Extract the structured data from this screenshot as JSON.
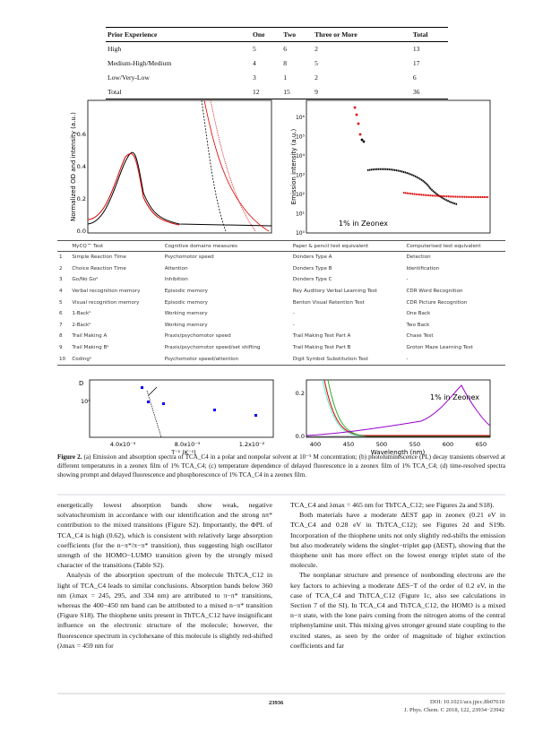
{
  "table1": {
    "headers": [
      "Prior Experience",
      "One",
      "Two",
      "Three or More",
      "Total"
    ],
    "rows": [
      [
        "High",
        "5",
        "6",
        "2",
        "13"
      ],
      [
        "Medium-High/Medium",
        "4",
        "8",
        "5",
        "17"
      ],
      [
        "Low/Very-Low",
        "3",
        "1",
        "2",
        "6"
      ],
      [
        "Total",
        "12",
        "15",
        "9",
        "36"
      ]
    ]
  },
  "figure_top": {
    "left": {
      "y_label": "Normalized OD and intensity (a.u.)",
      "yticks": [
        "0.0",
        "0.2",
        "0.4",
        "0.6"
      ]
    },
    "right": {
      "y_label": "Emission intensity (a.u.)",
      "yticks": [
        "10⁰",
        "10¹",
        "10²",
        "10³",
        "10⁴",
        "10⁵",
        "10⁶"
      ],
      "annotation": "1% in Zeonex"
    }
  },
  "table2": {
    "headers": [
      "MyCQ™ Test",
      "Cognitive domains measures",
      "Paper & pencil test equivalent",
      "Computerised test equivalent"
    ],
    "rows": [
      [
        "1",
        "Simple Reaction Time",
        "Psychomotor speed",
        "Donders Type A",
        "Detection"
      ],
      [
        "2",
        "Choice Reaction Time",
        "Attention",
        "Donders Type B",
        "Identification"
      ],
      [
        "3",
        "Go/No Goᵃ",
        "Inhibition",
        "Donders Type C",
        "-"
      ],
      [
        "4",
        "Verbal recognition memory",
        "Episodic memory",
        "Rey Auditory Verbal Learning Test",
        "CDR Word Recognition"
      ],
      [
        "5",
        "Visual recognition memory",
        "Episodic memory",
        "Benton Visual Retention Test",
        "CDR Picture Recognition"
      ],
      [
        "6",
        "1-Backᵇ",
        "Working memory",
        "-",
        "One Back"
      ],
      [
        "7",
        "2-Backᵇ",
        "Working memory",
        "-",
        "Two Back"
      ],
      [
        "8",
        "Trail Making A",
        "Praxis/psychomotor speed",
        "Trail Making Test Part A",
        "Chase Test"
      ],
      [
        "9",
        "Trail Making Bᵃ",
        "Praxis/psychomotor speed/set shifting",
        "Trail Making Test Part B",
        "Groton Maze Learning Test"
      ],
      [
        "10",
        "Codingᵃ",
        "Psychomotor speed/attention",
        "Digit Symbol Substitution Test",
        "-"
      ]
    ]
  },
  "figure_bottom": {
    "left": {
      "y_label": "D",
      "ytick": "10⁴",
      "xticks": [
        "4.0x10⁻³",
        "8.0x10⁻³",
        "1.2x10⁻²"
      ],
      "x_label": "T⁻¹ (K⁻¹)"
    },
    "right": {
      "yticks": [
        "0.0",
        "0.2"
      ],
      "xticks": [
        "400",
        "450",
        "500",
        "550",
        "600",
        "650"
      ],
      "x_label": "Wavelength (nm)",
      "annotation": "1% in Zeonex"
    }
  },
  "caption": {
    "label": "Figure 2.",
    "text": " (a) Emission and absorption spectra of TCA_C4 in a polar and nonpolar solvent at 10⁻⁵ M concentration; (b) photoluminescence (PL) decay transients observed at different temperatures in a zeonex film of 1% TCA_C4; (c) temperature dependence of delayed fluorescence in a zeonex film of 1% TCA_C4; (d) time-resolved spectra showing prompt and delayed fluorescence and phosphorescence of 1% TCA_C4 in a zeonex film."
  },
  "body": {
    "left": [
      "energetically lowest absorption bands show weak, negative solvatochromism in accordance with our identification and the strong nπ* contribution to the mixed transitions (Figure S2). Importantly, the ΦPL of TCA_C4 is high (0.62), which is consistent with relatively large absorption coefficients (for the n−π*/π−π* transition), thus suggesting high oscillator strength of the HOMO−LUMO transition given by the strongly mixed character of the transitions (Table S2).",
      "Analysis of the absorption spectrum of the molecule ThTCA_C12 in light of TCA_C4 leads to similar conclusions. Absorption bands below 360 nm (λmax = 245, 295, and 334 nm) are attributed to π−π* transitions, whereas the 400−450 nm band can be attributed to a mixed n−π* transition (Figure S18). The thiophene units present in ThTCA_C12 have insignificant influence on the electronic structure of the molecule; however, the fluorescence spectrum in cyclohexane of this molecule is slightly red-shifted (λmax = 459 nm for"
    ],
    "right": [
      "TCA_C4 and λmax = 465 nm for ThTCA_C12; see Figures 2a and S18).",
      "Both materials have a moderate ΔEST gap in zeonex (0.21 eV in TCA_C4 and 0.28 eV in ThTCA_C12); see Figures 2d and S19b. Incorporation of the thiophene units not only slightly red-shifts the emission but also moderately widens the singlet−triplet gap (ΔEST), showing that the thiophene unit has more effect on the lowest energy triplet state of the molecule.",
      "The nonplanar structure and presence of nonbonding electrons are the key factors to achieving a moderate ΔES−T of the order of 0.2 eV, in the case of TCA_C4 and ThTCA_C12 (Figure 1c, also see calculations in Section 7 of the SI). In TCA_C4 and ThTCA_C12, the HOMO is a mixed n−π state, with the lone pairs coming from the nitrogen atoms of the central triphenylamine unit. This mixing gives stronger ground state coupling to the excited states, as seen by the order of magnitude of higher extinction coefficients and far"
    ]
  },
  "footer": {
    "page": "23936",
    "doi": "DOI: 10.1021/acs.jpcc.8b07610",
    "journal": "J. Phys. Chem. C 2018, 122, 23934−23942"
  }
}
